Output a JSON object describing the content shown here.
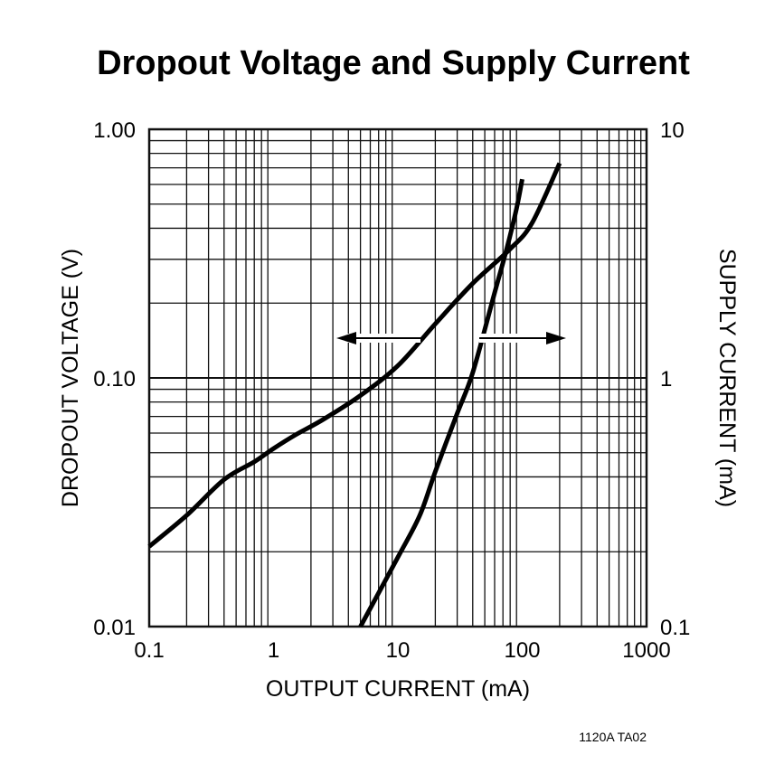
{
  "chart_data": {
    "type": "line",
    "title": "Dropout Voltage and Supply Current",
    "xlabel": "OUTPUT CURRENT (mA)",
    "ylabel_left": "DROPOUT VOLTAGE (V)",
    "ylabel_right": "SUPPLY CURRENT (mA)",
    "x_scale": "log",
    "y_scale": "log",
    "xlim": [
      0.1,
      1000
    ],
    "ylim_left": [
      0.01,
      1.0
    ],
    "ylim_right": [
      0.1,
      10
    ],
    "x_ticks": [
      "0.1",
      "1",
      "10",
      "100",
      "1000"
    ],
    "y_left_ticks": [
      "0.01",
      "0.10",
      "1.00"
    ],
    "y_right_ticks": [
      "0.1",
      "1",
      "10"
    ],
    "grid": true,
    "series": [
      {
        "axis": "left",
        "points": [
          [
            0.1,
            0.021
          ],
          [
            0.2,
            0.028
          ],
          [
            0.4,
            0.039
          ],
          [
            0.7,
            0.046
          ],
          [
            1.0,
            0.052
          ],
          [
            1.5,
            0.059
          ],
          [
            2.5,
            0.068
          ],
          [
            5.0,
            0.085
          ],
          [
            10,
            0.112
          ],
          [
            20,
            0.165
          ],
          [
            40,
            0.24
          ],
          [
            80,
            0.33
          ],
          [
            120,
            0.42
          ],
          [
            200,
            0.73
          ]
        ]
      },
      {
        "axis": "right",
        "points": [
          [
            5.0,
            0.1
          ],
          [
            10,
            0.19
          ],
          [
            15,
            0.28
          ],
          [
            20,
            0.42
          ],
          [
            30,
            0.72
          ],
          [
            40,
            1.05
          ],
          [
            60,
            2.2
          ],
          [
            75,
            3.3
          ],
          [
            90,
            4.8
          ],
          [
            100,
            6.3
          ]
        ]
      }
    ],
    "annotation_code": "1120A TA02"
  }
}
